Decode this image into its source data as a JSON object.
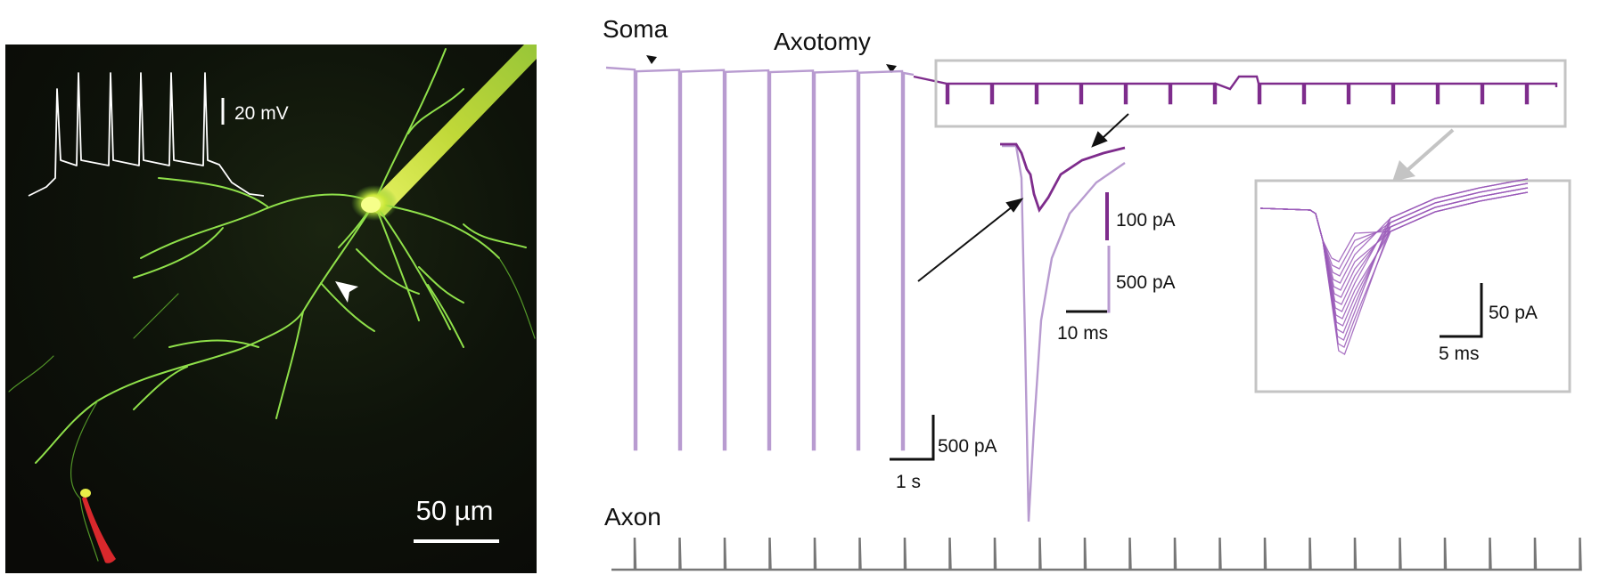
{
  "micrograph": {
    "inset_scale_label": "20 mV",
    "scale_bar_label": "50 µm"
  },
  "recording": {
    "soma_label": "Soma",
    "axotomy_label": "Axotomy",
    "axon_label": "Axon",
    "main_scale": {
      "current": "500 pA",
      "time": "1 s"
    },
    "zoom_scale": {
      "current_small": "100 pA",
      "current_large": "500 pA",
      "time": "10 ms"
    },
    "inset_scale": {
      "current": "50 pA",
      "time": "5 ms"
    }
  },
  "colors": {
    "light_trace": "#b89bd0",
    "dark_trace": "#7e2c8c",
    "inset_trace": "#9a5bb8",
    "box": "#c4c4c4",
    "axon_trace": "#777777",
    "neuron": "#8fe04a",
    "pipette": "#d8ea3a",
    "red_cell": "#d8282c"
  }
}
